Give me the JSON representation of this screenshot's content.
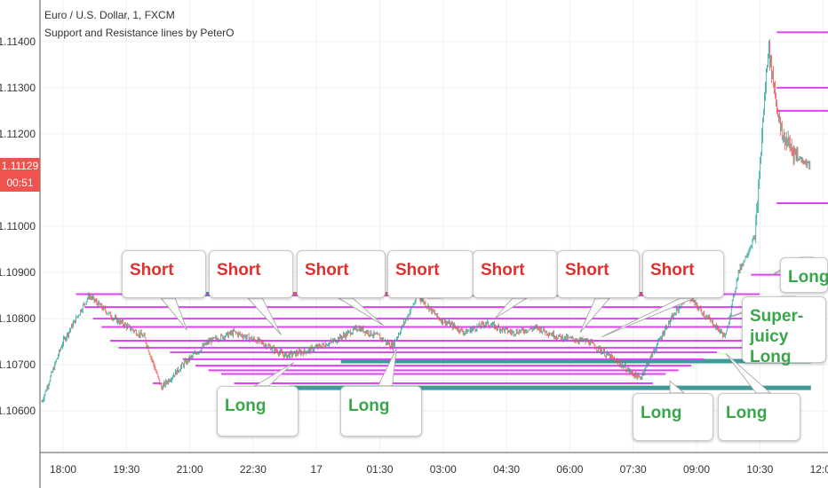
{
  "header": {
    "symbol_line": "Euro / U.S. Dollar, 1, FXCM",
    "study_line": "Support and Resistance lines by PeterO"
  },
  "price_tag": {
    "value": "1.11129",
    "countdown": "00:51"
  },
  "colors": {
    "support_resistance": "#e040fb",
    "bull_candle": "#26a69a",
    "bear_candle": "#ef5350",
    "teal_zone": "#3f9a98",
    "red_zone": "#d46a66",
    "short_text": "#e0322d",
    "long_text": "#3aa64a",
    "price_tag": "#ee5350"
  },
  "chart_data": {
    "type": "candlestick",
    "x_ticks": [
      "18:00",
      "19:30",
      "21:00",
      "22:30",
      "17",
      "01:30",
      "03:00",
      "04:30",
      "06:00",
      "07:30",
      "09:00",
      "10:30",
      "12:00"
    ],
    "y_ticks": [
      "1.10600",
      "1.10700",
      "1.10800",
      "1.10900",
      "1.11000",
      "1.11200",
      "1.11300",
      "1.11400"
    ],
    "ylim": [
      1.1051,
      1.1149
    ],
    "price_path": [
      [
        0,
        1.1062
      ],
      [
        5,
        1.1075
      ],
      [
        11,
        1.1085
      ],
      [
        17,
        1.108
      ],
      [
        24,
        1.1076
      ],
      [
        28,
        1.1065
      ],
      [
        33,
        1.107
      ],
      [
        39,
        1.1075
      ],
      [
        45,
        1.1077
      ],
      [
        51,
        1.1075
      ],
      [
        57,
        1.1072
      ],
      [
        62,
        1.1073
      ],
      [
        68,
        1.1075
      ],
      [
        74,
        1.1078
      ],
      [
        79,
        1.1076
      ],
      [
        82,
        1.1074
      ],
      [
        88,
        1.1085
      ],
      [
        93,
        1.108
      ],
      [
        99,
        1.1077
      ],
      [
        104,
        1.1079
      ],
      [
        110,
        1.1077
      ],
      [
        116,
        1.1078
      ],
      [
        121,
        1.1076
      ],
      [
        128,
        1.1075
      ],
      [
        134,
        1.1071
      ],
      [
        140,
        1.1067
      ],
      [
        146,
        1.1078
      ],
      [
        151,
        1.1085
      ],
      [
        156,
        1.108
      ],
      [
        160,
        1.1076
      ],
      [
        163,
        1.109
      ],
      [
        167,
        1.1098
      ],
      [
        168,
        1.1112
      ],
      [
        170,
        1.1139
      ],
      [
        173,
        1.112
      ],
      [
        177,
        1.1115
      ],
      [
        180,
        1.1113
      ]
    ],
    "resistance_levels": [
      1.10853,
      1.10825,
      1.108,
      1.10782,
      1.10752,
      1.10737
    ],
    "support_levels": [
      1.10727,
      1.10712,
      1.10698,
      1.10688,
      1.1068,
      1.1066
    ],
    "zones": [
      {
        "color": "teal",
        "price": 1.10853,
        "from_t": 28,
        "to_t": 47
      },
      {
        "color": "red",
        "price": 1.10853,
        "from_t": 47,
        "to_t": 158
      },
      {
        "color": "teal",
        "price": 1.10708,
        "from_t": 70,
        "to_t": 180
      },
      {
        "color": "teal",
        "price": 1.1065,
        "from_t": 58,
        "to_t": 180
      }
    ],
    "annotations": [
      {
        "text": "Short",
        "kind": "short",
        "anchor_t": 34,
        "anchor_p": 1.10775
      },
      {
        "text": "Short",
        "kind": "short",
        "anchor_t": 56,
        "anchor_p": 1.10765
      },
      {
        "text": "Short",
        "kind": "short",
        "anchor_t": 80,
        "anchor_p": 1.10785
      },
      {
        "text": "Short",
        "kind": "short",
        "anchor_t": 85,
        "anchor_p": 1.1085
      },
      {
        "text": "Short",
        "kind": "short",
        "anchor_t": 106,
        "anchor_p": 1.108
      },
      {
        "text": "Short",
        "kind": "short",
        "anchor_t": 126,
        "anchor_p": 1.1077
      },
      {
        "text": "Short",
        "kind": "short",
        "anchor_t": 131,
        "anchor_p": 1.1076
      },
      {
        "text": "Long",
        "kind": "long",
        "anchor_t": 59,
        "anchor_p": 1.10705
      },
      {
        "text": "Long",
        "kind": "long",
        "anchor_t": 83,
        "anchor_p": 1.10735
      },
      {
        "text": "Long",
        "kind": "long",
        "anchor_t": 147,
        "anchor_p": 1.10665
      },
      {
        "text": "Long",
        "kind": "long",
        "anchor_t": 160,
        "anchor_p": 1.10725
      },
      {
        "text": "Long",
        "kind": "long",
        "anchor_t": 171,
        "anchor_p": 1.10895
      },
      {
        "text": "Super-juicy Long",
        "kind": "long",
        "anchor_t": 160,
        "anchor_p": 1.108
      }
    ]
  }
}
